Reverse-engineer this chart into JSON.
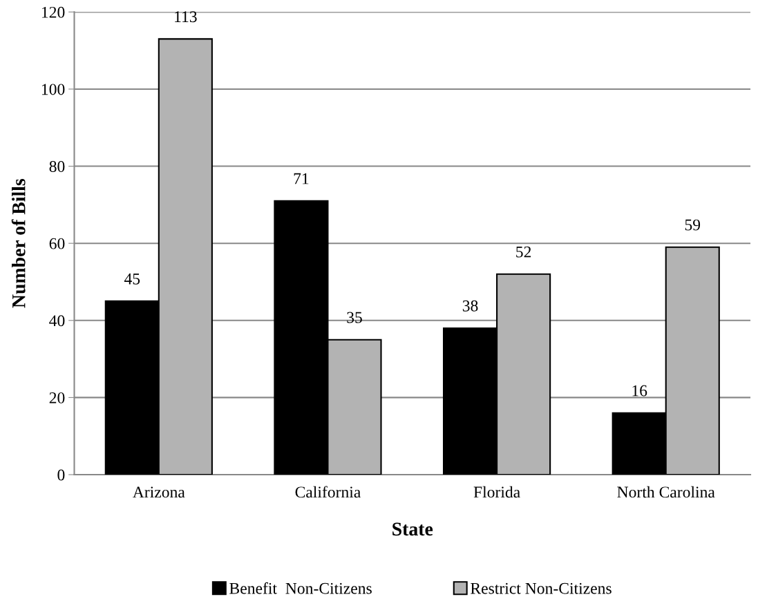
{
  "chart_data": {
    "type": "bar",
    "xlabel": "State",
    "ylabel": "Number of Bills",
    "categories": [
      "Arizona",
      "California",
      "Florida",
      "North Carolina"
    ],
    "series": [
      {
        "name": "Benefit  Non-Citizens",
        "color": "#000000",
        "values": [
          45,
          71,
          38,
          16
        ]
      },
      {
        "name": "Restrict Non-Citizens",
        "color": "#b3b3b3",
        "values": [
          113,
          35,
          52,
          59
        ]
      }
    ],
    "ylim": [
      0,
      120
    ],
    "yticks": [
      0,
      20,
      40,
      60,
      80,
      100,
      120
    ],
    "grid": "y",
    "legend": "bottom",
    "data_labels": true
  }
}
